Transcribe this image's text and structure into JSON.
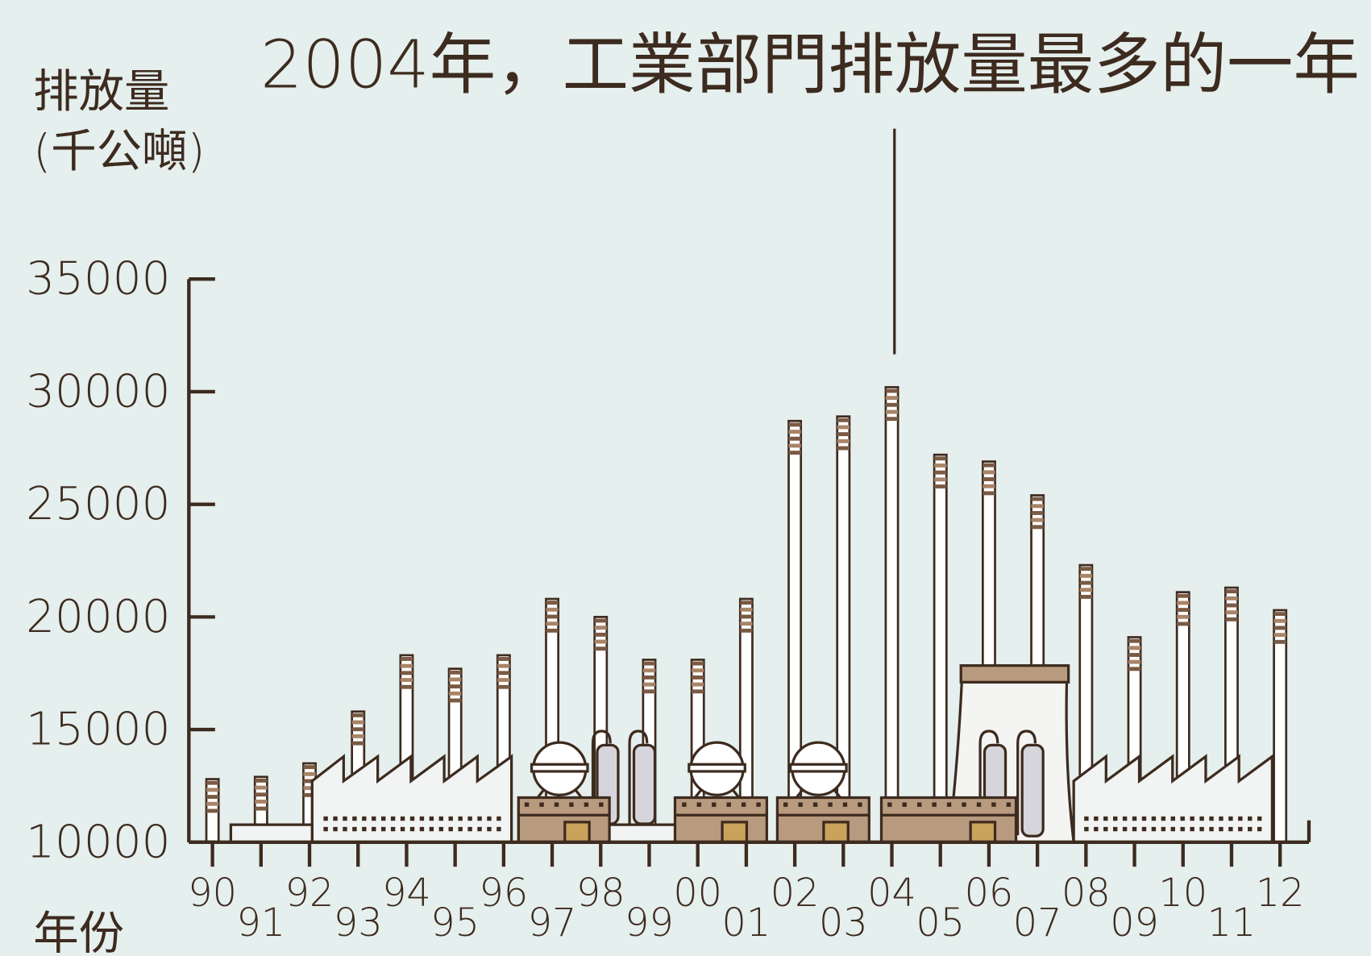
{
  "chart_data": {
    "type": "bar",
    "title": "2004年，工業部門排放量最多的一年",
    "y_label": "排放量",
    "y_unit": "(千公噸)",
    "x_label": "年份",
    "categories": [
      "90",
      "91",
      "92",
      "93",
      "94",
      "95",
      "96",
      "97",
      "98",
      "99",
      "00",
      "01",
      "02",
      "03",
      "04",
      "05",
      "06",
      "07",
      "08",
      "09",
      "10",
      "11",
      "12"
    ],
    "values": [
      12800,
      12900,
      13500,
      15800,
      18300,
      17700,
      18300,
      20800,
      20000,
      18100,
      18100,
      20800,
      28700,
      28900,
      30200,
      27200,
      26900,
      25400,
      22300,
      19100,
      21100,
      21300,
      20300
    ],
    "color": "#ffffff",
    "ylim": [
      10000,
      35000
    ],
    "yticks": [
      10000,
      15000,
      20000,
      25000,
      30000,
      35000
    ]
  }
}
